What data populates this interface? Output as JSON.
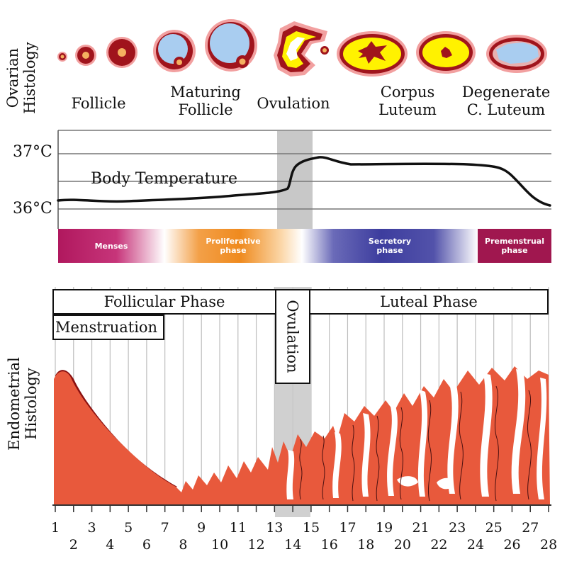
{
  "ovarian": {
    "axis_label_line1": "Ovarian",
    "axis_label_line2": "Histology",
    "stages": [
      {
        "line1": "Follicle",
        "line2": ""
      },
      {
        "line1": "Maturing",
        "line2": "Follicle"
      },
      {
        "line1": "Ovulation",
        "line2": ""
      },
      {
        "line1": "Corpus",
        "line2": "Luteum"
      },
      {
        "line1": "Degenerate",
        "line2": "C. Luteum"
      }
    ]
  },
  "temperature": {
    "label": "Body Temperature",
    "tick_high": "37°C",
    "tick_low": "36°C"
  },
  "cycle_bands": [
    {
      "line1": "Menses",
      "line2": "",
      "color": "#b0185e"
    },
    {
      "line1": "Proliferative",
      "line2": "phase",
      "color": "#ef8a1e"
    },
    {
      "line1": "Secretory",
      "line2": "phase",
      "color": "#3d3d9e"
    },
    {
      "line1": "Premenstrual",
      "line2": "phase",
      "color": "#a0174f"
    }
  ],
  "phases": {
    "follicular": "Follicular Phase",
    "menstruation": "Menstruation",
    "ovulation": "Ovulation",
    "luteal": "Luteal Phase"
  },
  "endometrial": {
    "axis_label_line1": "Endometrial",
    "axis_label_line2": "Histology",
    "tissue_color": "#e8593c",
    "dark_color": "#8a1010"
  },
  "days": [
    "1",
    "2",
    "3",
    "4",
    "5",
    "6",
    "7",
    "8",
    "9",
    "10",
    "11",
    "12",
    "13",
    "14",
    "15",
    "16",
    "17",
    "18",
    "19",
    "20",
    "21",
    "22",
    "23",
    "24",
    "25",
    "26",
    "27",
    "28"
  ],
  "colors": {
    "ovulation_shade": "#c8c8c8",
    "follicle_fill": "#a9cdf0",
    "corpus_fill": "#fff200",
    "follicle_ring": "#a0141c"
  }
}
